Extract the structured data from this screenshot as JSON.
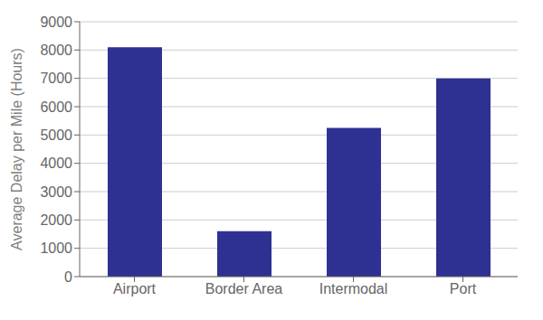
{
  "chart_data": {
    "type": "bar",
    "categories": [
      "Airport",
      "Border Area",
      "Intermodal",
      "Port"
    ],
    "values": [
      8100,
      1600,
      5250,
      7000
    ],
    "color": "#2E3191",
    "ylabel": "Average Delay per Mile (Hours)",
    "ylim": [
      0,
      9000
    ],
    "yticks": [
      0,
      1000,
      2000,
      3000,
      4000,
      5000,
      6000,
      7000,
      8000,
      9000
    ],
    "grid": true
  }
}
